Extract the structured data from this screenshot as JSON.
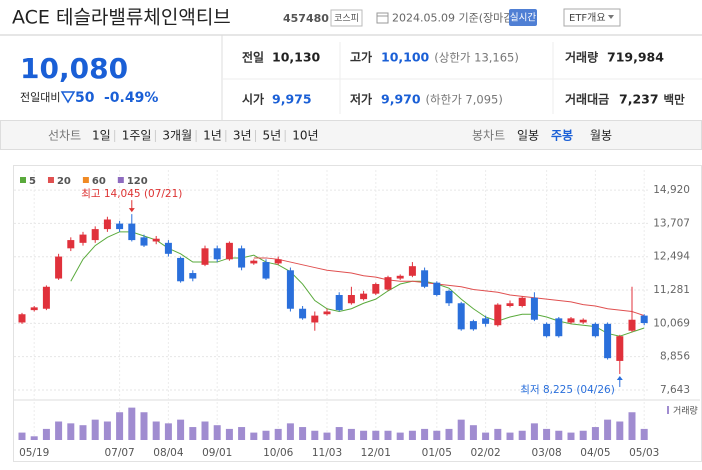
{
  "header": {
    "title": "ACE 테슬라밸류체인액티브",
    "code": "457480",
    "market": "코스피",
    "date": "2024.05.09 기준(장마감)",
    "realtime": "실시간",
    "etf_button": "ETF개요"
  },
  "price": {
    "current": "10,080",
    "change_label": "전일대비",
    "change": "50",
    "change_rate": "-0.49%"
  },
  "info": [
    {
      "label": "전일",
      "value": "10,130",
      "color": "#222222"
    },
    {
      "label": "고가",
      "value": "10,100",
      "extra": "(상한가 13,165)",
      "color": "#1a5fd6"
    },
    {
      "label": "거래량",
      "value": "719,984",
      "color": "#222222"
    },
    {
      "label": "시가",
      "value": "9,975",
      "color": "#1a5fd6"
    },
    {
      "label": "저가",
      "value": "9,970",
      "extra": "(하한가 7,095)",
      "color": "#1a5fd6"
    },
    {
      "label": "거래대금",
      "value": "7,237",
      "extra": "백만",
      "color": "#222222"
    }
  ],
  "tabs": {
    "line_label": "선차트",
    "line_periods": [
      "1일",
      "1주일",
      "3개월",
      "1년",
      "3년",
      "5년",
      "10년"
    ],
    "candle_label": "봉차트",
    "candle_periods": [
      "일봉",
      "주봉",
      "월봉"
    ]
  },
  "chart_data": {
    "type": "candlestick",
    "categories": [
      null,
      "05/19",
      null,
      null,
      null,
      null,
      null,
      null,
      "07/07",
      null,
      null,
      null,
      "08/04",
      null,
      null,
      null,
      "09/01",
      null,
      null,
      null,
      null,
      "10/06",
      null,
      null,
      null,
      "11/03",
      null,
      null,
      null,
      "12/01",
      null,
      null,
      null,
      null,
      "01/05",
      null,
      null,
      null,
      "02/02",
      null,
      null,
      null,
      null,
      "03/08",
      null,
      null,
      null,
      "04/05",
      null,
      null,
      null,
      "05/03"
    ],
    "open": [
      10100,
      10550,
      10600,
      11700,
      12800,
      13000,
      13100,
      13500,
      13700,
      13700,
      13200,
      13050,
      13000,
      12450,
      11900,
      12200,
      12800,
      12400,
      12800,
      12250,
      12300,
      12250,
      12000,
      10600,
      10100,
      10400,
      11100,
      10800,
      10950,
      11150,
      11300,
      11700,
      11800,
      12000,
      11550,
      11250,
      10800,
      10150,
      10250,
      10000,
      10700,
      10700,
      11000,
      10050,
      10250,
      10100,
      10100,
      10050,
      10050,
      8700,
      9800,
      10350
    ],
    "high": [
      10450,
      10700,
      11450,
      12600,
      13200,
      13400,
      13600,
      13950,
      13800,
      14045,
      13300,
      13250,
      13100,
      12500,
      12000,
      12900,
      12900,
      13050,
      12900,
      12400,
      12400,
      12500,
      12100,
      10700,
      10500,
      10600,
      11200,
      11400,
      11250,
      11550,
      11800,
      11850,
      12300,
      12100,
      11600,
      11300,
      10850,
      10200,
      10350,
      10800,
      10900,
      11050,
      11200,
      10100,
      10300,
      10300,
      10250,
      10100,
      10100,
      9650,
      11400,
      10400
    ],
    "low": [
      10050,
      10500,
      10550,
      11650,
      12700,
      12900,
      13000,
      13400,
      13400,
      13050,
      12850,
      12950,
      12500,
      11550,
      11600,
      12150,
      12300,
      12350,
      12000,
      12200,
      11650,
      12200,
      10500,
      10200,
      9800,
      10350,
      10500,
      10750,
      10900,
      11100,
      11250,
      11650,
      11750,
      11350,
      11050,
      10700,
      9800,
      9800,
      9950,
      9950,
      10650,
      10650,
      10150,
      9550,
      9550,
      10050,
      10050,
      9550,
      8750,
      8225,
      9750,
      10000
    ],
    "close": [
      10400,
      10650,
      11400,
      12500,
      13100,
      13300,
      13500,
      13850,
      13500,
      13100,
      12900,
      13150,
      12600,
      11600,
      11700,
      12800,
      12400,
      13000,
      12100,
      12350,
      11700,
      12400,
      10600,
      10250,
      10350,
      10500,
      10550,
      11100,
      11150,
      11500,
      11750,
      11800,
      12150,
      11400,
      11100,
      10800,
      9850,
      9850,
      10050,
      10750,
      10800,
      11000,
      10200,
      9600,
      9600,
      10250,
      10200,
      9600,
      8800,
      9600,
      10200,
      10080
    ],
    "up_color": "#e0313b",
    "down_color": "#2a6fdb",
    "series": [
      {
        "name": "5",
        "color": "#5aaa3c",
        "values": [
          null,
          null,
          null,
          null,
          11600,
          12400,
          12900,
          13200,
          13400,
          13400,
          13250,
          13100,
          12800,
          12600,
          12300,
          12300,
          12300,
          12450,
          12450,
          12550,
          12300,
          12200,
          11950,
          11500,
          10900,
          10600,
          10500,
          10600,
          10800,
          10950,
          11250,
          11500,
          11600,
          11600,
          11500,
          11350,
          10950,
          10600,
          10300,
          10150,
          10300,
          10400,
          10400,
          10300,
          10150,
          10050,
          10000,
          9950,
          9700,
          9600,
          9750,
          9900
        ]
      },
      {
        "name": "20",
        "color": "#e05050",
        "values": [
          null,
          null,
          null,
          null,
          null,
          null,
          null,
          null,
          null,
          null,
          null,
          null,
          null,
          null,
          null,
          null,
          null,
          null,
          null,
          12450,
          12450,
          12400,
          12300,
          12200,
          12100,
          12000,
          11950,
          11900,
          11800,
          11750,
          11650,
          11600,
          11600,
          11550,
          11500,
          11450,
          11400,
          11300,
          11250,
          11200,
          11100,
          11050,
          11000,
          10950,
          10900,
          10850,
          10750,
          10700,
          10600,
          10550,
          10500,
          10350
        ]
      },
      {
        "name": "60",
        "color": "#f08a24",
        "values": [
          null,
          null,
          null,
          null,
          null,
          null,
          null,
          null,
          null,
          null,
          null,
          null,
          null,
          null,
          null,
          null,
          null,
          null,
          null,
          null,
          null,
          null,
          null,
          null,
          null,
          null,
          null,
          null,
          null,
          null,
          null,
          null,
          null,
          null,
          null,
          null,
          null,
          null,
          null,
          null,
          null,
          null,
          null,
          null,
          null,
          null,
          null,
          null,
          null,
          null,
          null,
          null
        ]
      },
      {
        "name": "120",
        "color": "#8e6bbf",
        "values": [
          null,
          null,
          null,
          null,
          null,
          null,
          null,
          null,
          null,
          null,
          null,
          null,
          null,
          null,
          null,
          null,
          null,
          null,
          null,
          null,
          null,
          null,
          null,
          null,
          null,
          null,
          null,
          null,
          null,
          null,
          null,
          null,
          null,
          null,
          null,
          null,
          null,
          null,
          null,
          null,
          null,
          null,
          null,
          null,
          null,
          null,
          null,
          null,
          null,
          null,
          null,
          null
        ]
      }
    ],
    "ylim": [
      7350,
      15470
    ],
    "yticks": [
      {
        "value": 14920,
        "label": "14,920"
      },
      {
        "value": 13707,
        "label": "13,707"
      },
      {
        "value": 12494,
        "label": "12,494"
      },
      {
        "value": 11281,
        "label": "11,281"
      },
      {
        "value": 10069,
        "label": "10,069"
      },
      {
        "value": 8856,
        "label": "8,856"
      },
      {
        "value": 7643,
        "label": "7,643"
      }
    ],
    "grid": true,
    "annotations": {
      "high_label": "최고 14,045 (07/21)",
      "low_label": "최저 8,225 (04/26)"
    },
    "volume": {
      "label": "거래량",
      "color": "#a08cd0",
      "ylim": [
        0,
        40
      ],
      "values": [
        8,
        4,
        12,
        20,
        18,
        16,
        22,
        20,
        30,
        35,
        30,
        20,
        18,
        22,
        14,
        20,
        16,
        12,
        14,
        8,
        10,
        12,
        18,
        14,
        10,
        8,
        14,
        12,
        10,
        10,
        10,
        8,
        10,
        12,
        10,
        12,
        22,
        16,
        8,
        12,
        8,
        10,
        18,
        12,
        10,
        8,
        10,
        14,
        22,
        20,
        30,
        12
      ]
    }
  }
}
